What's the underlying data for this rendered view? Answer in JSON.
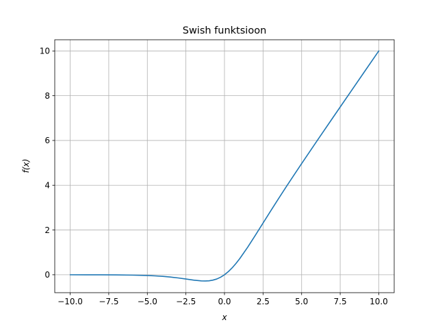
{
  "chart_data": {
    "type": "line",
    "title": "Swish funktsioon",
    "xlabel": "x",
    "ylabel": "f(x)",
    "xlim": [
      -11.0,
      11.0
    ],
    "ylim": [
      -0.8,
      10.5
    ],
    "grid": true,
    "xticks": [
      -10.0,
      -7.5,
      -5.0,
      -2.5,
      0.0,
      2.5,
      5.0,
      7.5,
      10.0
    ],
    "xtick_labels": [
      "−10.0",
      "−7.5",
      "−5.0",
      "−2.5",
      "0.0",
      "2.5",
      "5.0",
      "7.5",
      "10.0"
    ],
    "yticks": [
      0,
      2,
      4,
      6,
      8,
      10
    ],
    "ytick_labels": [
      "0",
      "2",
      "4",
      "6",
      "8",
      "10"
    ],
    "series": [
      {
        "color": "#1f77b4",
        "x": [
          -10,
          -9,
          -8,
          -7,
          -6,
          -5,
          -4.5,
          -4,
          -3.5,
          -3,
          -2.5,
          -2,
          -1.5,
          -1.25,
          -1,
          -0.75,
          -0.5,
          -0.25,
          0,
          0.25,
          0.5,
          0.75,
          1,
          1.5,
          2,
          2.5,
          3,
          3.5,
          4,
          4.5,
          5,
          6,
          7,
          8,
          9,
          10
        ],
        "y": [
          0.0,
          -0.001,
          -0.003,
          -0.006,
          -0.015,
          -0.033,
          -0.05,
          -0.072,
          -0.102,
          -0.142,
          -0.189,
          -0.238,
          -0.274,
          -0.278,
          -0.269,
          -0.239,
          -0.189,
          -0.109,
          0.0,
          0.141,
          0.311,
          0.509,
          0.731,
          1.227,
          1.762,
          2.311,
          2.858,
          3.397,
          3.928,
          4.45,
          4.967,
          5.985,
          6.994,
          7.997,
          8.999,
          10.0
        ]
      }
    ]
  }
}
